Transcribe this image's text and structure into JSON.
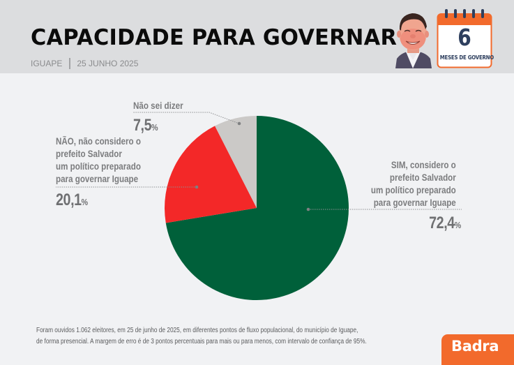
{
  "header": {
    "title": "CAPACIDADE PARA GOVERNAR",
    "location": "IGUAPE",
    "date": "25 JUNHO 2025",
    "calendar": {
      "number": "6",
      "label": "MESES DE GOVERNO",
      "icon": "calendar-icon"
    },
    "avatar_icon": "caricature-portrait"
  },
  "colors": {
    "sim": "#00603a",
    "nao": "#f32828",
    "nao_sei": "#cbc9c7",
    "accent": "#f26a2c",
    "header_bg": "#dcdddf",
    "body_bg": "#f1f2f4",
    "calendar_text": "#2e3f5e"
  },
  "chart_data": {
    "type": "pie",
    "title": "CAPACIDADE PARA GOVERNAR",
    "start_angle": "12 o'clock, clockwise",
    "slices": [
      {
        "key": "sim",
        "label_lines": [
          "SIM, considero o",
          "prefeito Salvador",
          "um político preparado",
          "para governar Iguape"
        ],
        "value": 72.4,
        "value_text": "72,4",
        "unit": "%",
        "color": "#00603a"
      },
      {
        "key": "nao",
        "label_lines": [
          "NÃO, não considero o",
          "prefeito Salvador",
          "um político preparado",
          "para governar Iguape"
        ],
        "value": 20.1,
        "value_text": "20,1",
        "unit": "%",
        "color": "#f32828"
      },
      {
        "key": "nao_sei",
        "label_lines": [
          "Não sei dizer"
        ],
        "value": 7.5,
        "value_text": "7,5",
        "unit": "%",
        "color": "#cbc9c7"
      }
    ]
  },
  "footnote": {
    "line1": "Foram ouvidos 1.062 eleitores, em 25 de junho de 2025, em diferentes pontos de fluxo populacional, do município de Iguape,",
    "line2": "de forma presencial. A margem de erro é de 3 pontos percentuais para mais ou para menos, com intervalo de confiança de 95%."
  },
  "brand": {
    "logo_text": "Badra"
  }
}
